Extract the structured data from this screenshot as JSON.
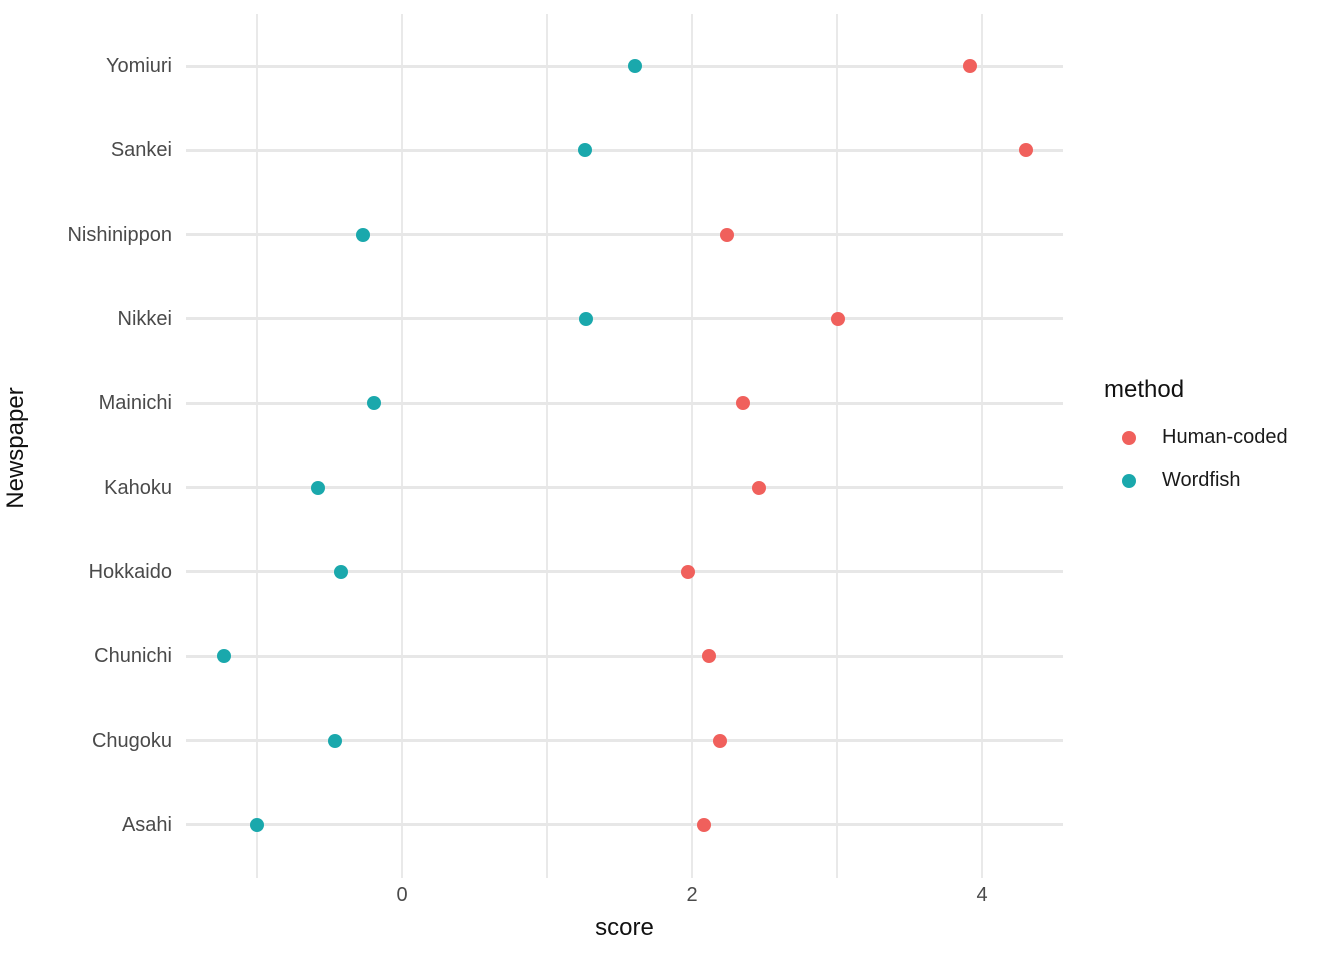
{
  "chart_data": {
    "type": "scatter",
    "variant": "horizontal-dot-plot",
    "title": "",
    "xlabel": "score",
    "ylabel": "Newspaper",
    "x_ticks": [
      0,
      2,
      4
    ],
    "x_gridlines": [
      -1,
      0,
      1,
      2,
      3,
      4
    ],
    "xlim": [
      -1.49,
      4.56
    ],
    "grid": true,
    "categories": [
      "Yomiuri",
      "Sankei",
      "Nishinippon",
      "Nikkei",
      "Mainichi",
      "Kahoku",
      "Hokkaido",
      "Chunichi",
      "Chugoku",
      "Asahi"
    ],
    "series": [
      {
        "name": "Human-coded",
        "color": "#F0605C",
        "values": [
          3.92,
          4.3,
          2.24,
          3.01,
          2.35,
          2.46,
          1.97,
          2.12,
          2.19,
          2.08
        ]
      },
      {
        "name": "Wordfish",
        "color": "#1AA8AC",
        "values": [
          1.61,
          1.26,
          -0.27,
          1.27,
          -0.19,
          -0.58,
          -0.42,
          -1.23,
          -0.46,
          -1.0
        ]
      }
    ],
    "legend": {
      "title": "method",
      "position": "right"
    }
  },
  "colors": {
    "background": "#ffffff",
    "gridline": "#e8e8e8",
    "tick_text": "#4a4a4a",
    "axis_title_text": "#111111"
  }
}
